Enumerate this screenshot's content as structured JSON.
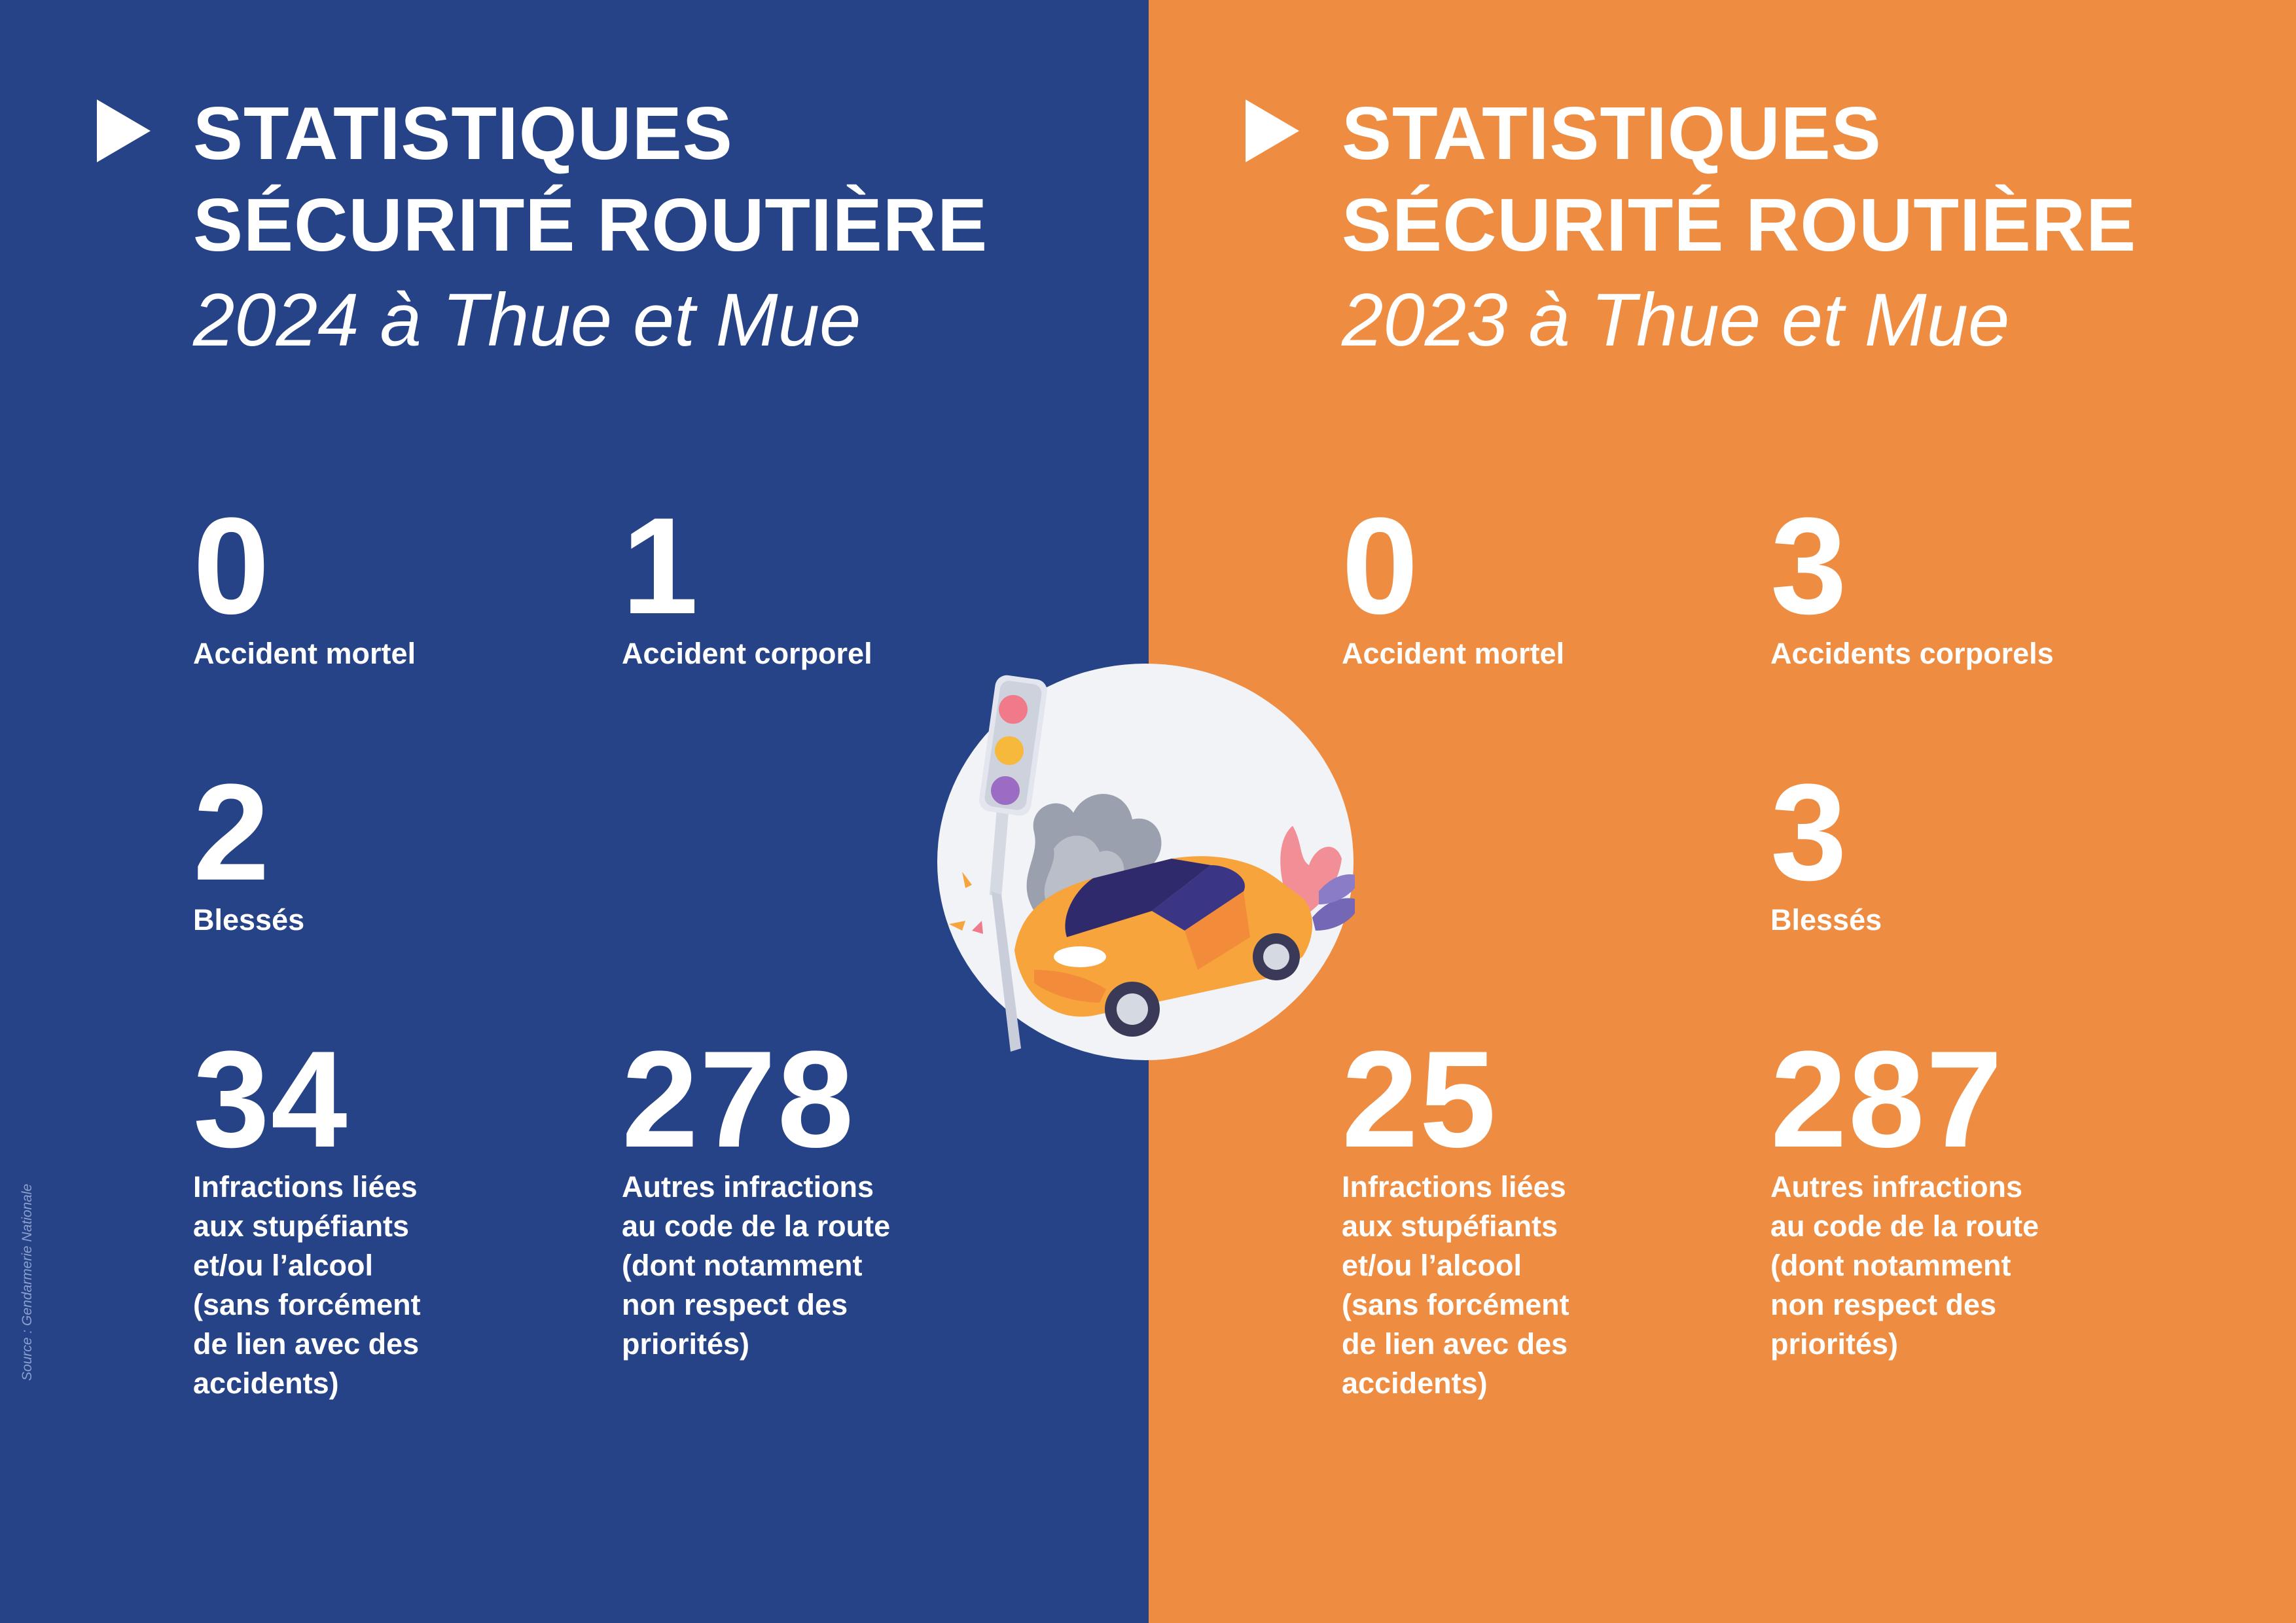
{
  "source": "Source : Gendarmerie Nationale",
  "colors": {
    "left_bg": "#264387",
    "right_bg": "#EE8D42",
    "text": "#FFFFFF"
  },
  "left": {
    "title_line1": "STATISTIQUES",
    "title_line2": "SÉCURITÉ ROUTIÈRE",
    "subtitle": "2024 à Thue et Mue",
    "stats": [
      {
        "value": "0",
        "label": [
          "Accident mortel"
        ]
      },
      {
        "value": "1",
        "label": [
          "Accident corporel"
        ]
      },
      {
        "value": "2",
        "label": [
          "Blessés"
        ]
      },
      {
        "value": "34",
        "label": [
          "Infractions liées",
          "aux stupéfiants",
          "et/ou l’alcool",
          "(sans forcément",
          "de lien avec des",
          "accidents)"
        ]
      },
      {
        "value": "278",
        "label": [
          "Autres infractions",
          "au code de la route",
          "(dont notamment",
          "non respect des",
          "priorités)"
        ]
      }
    ]
  },
  "right": {
    "title_line1": "STATISTIQUES",
    "title_line2": "SÉCURITÉ ROUTIÈRE",
    "subtitle": "2023 à Thue et Mue",
    "stats": [
      {
        "value": "0",
        "label": [
          "Accident mortel"
        ]
      },
      {
        "value": "3",
        "label": [
          "Accidents corporels"
        ]
      },
      {
        "value": "3",
        "label": [
          "Blessés"
        ]
      },
      {
        "value": "25",
        "label": [
          "Infractions liées",
          "aux stupéfiants",
          "et/ou l’alcool",
          "(sans forcément",
          "de lien avec des",
          "accidents)"
        ]
      },
      {
        "value": "287",
        "label": [
          "Autres infractions",
          "au code de la route",
          "(dont notamment",
          "non respect des",
          "priorités)"
        ]
      }
    ]
  },
  "illustration": {
    "icon": "car-crash-traffic-light-icon"
  }
}
